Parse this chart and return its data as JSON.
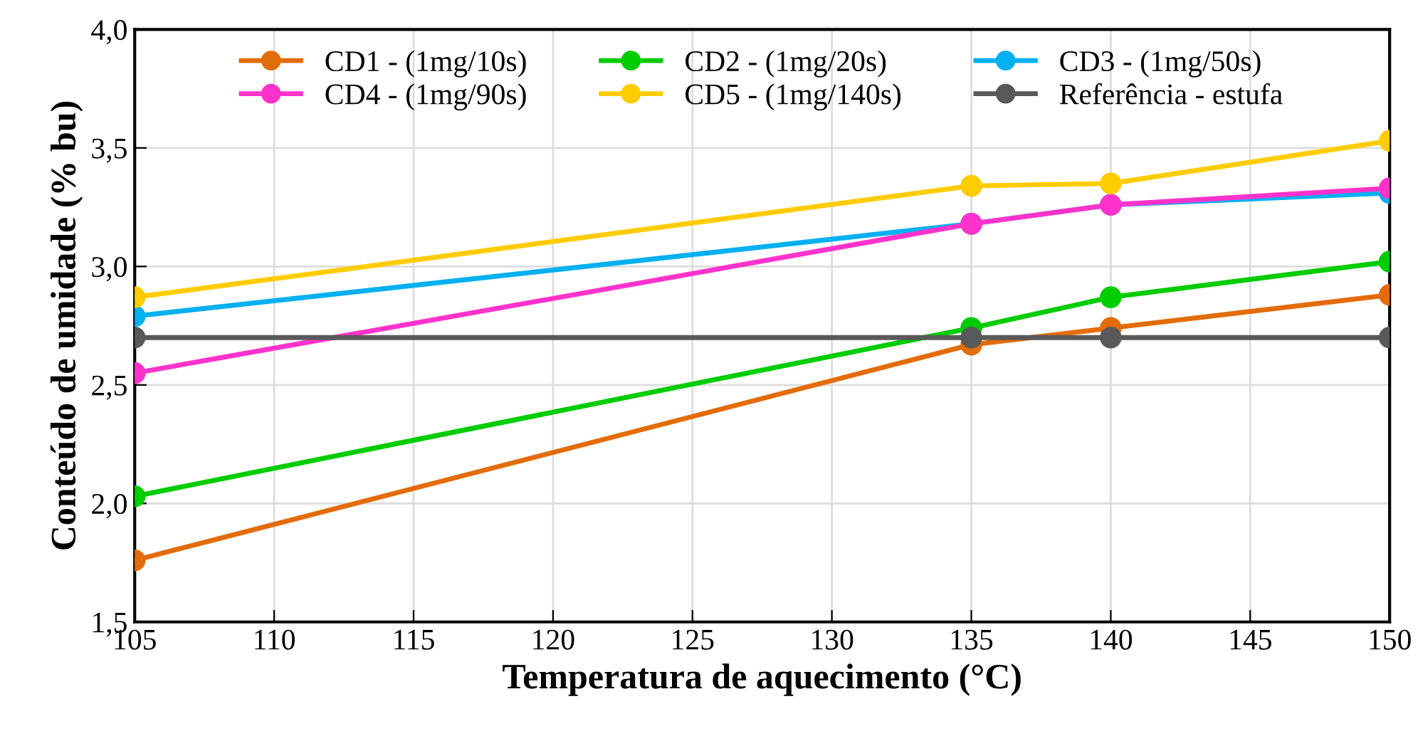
{
  "chart_data": {
    "type": "line",
    "xlabel": "Temperatura de aquecimento (°C)",
    "ylabel": "Conteúdo de umidade (% bu)",
    "x": [
      105,
      135,
      140,
      150
    ],
    "series": [
      {
        "name": "CD1 - (1mg/10s)",
        "color": "#e36c0a",
        "values": [
          1.76,
          2.67,
          2.74,
          2.88
        ]
      },
      {
        "name": "CD2 - (1mg/20s)",
        "color": "#00cc00",
        "values": [
          2.03,
          2.74,
          2.87,
          3.02
        ]
      },
      {
        "name": "CD3 - (1mg/50s)",
        "color": "#00b0f0",
        "values": [
          2.79,
          3.18,
          3.26,
          3.31
        ]
      },
      {
        "name": "CD4 - (1mg/90s)",
        "color": "#ff33cc",
        "values": [
          2.55,
          3.18,
          3.26,
          3.33
        ]
      },
      {
        "name": "CD5 - (1mg/140s)",
        "color": "#ffcc00",
        "values": [
          2.87,
          3.34,
          3.35,
          3.53
        ]
      },
      {
        "name": "Referência - estufa",
        "color": "#595959",
        "values": [
          2.7,
          2.7,
          2.7,
          2.7
        ]
      }
    ],
    "xlim": [
      105,
      150
    ],
    "xticks": [
      105,
      110,
      115,
      120,
      125,
      130,
      135,
      140,
      145,
      150
    ],
    "ylim": [
      1.5,
      4.0
    ],
    "yticks": [
      {
        "value": 1.5,
        "label": "1,5"
      },
      {
        "value": 2.0,
        "label": "2,0"
      },
      {
        "value": 2.5,
        "label": "2,5"
      },
      {
        "value": 3.0,
        "label": "3,0"
      },
      {
        "value": 3.5,
        "label": "3,5"
      },
      {
        "value": 4.0,
        "label": "4,0"
      }
    ],
    "grid": true,
    "legend": "top",
    "marker": "circle",
    "line_style": "solid"
  }
}
